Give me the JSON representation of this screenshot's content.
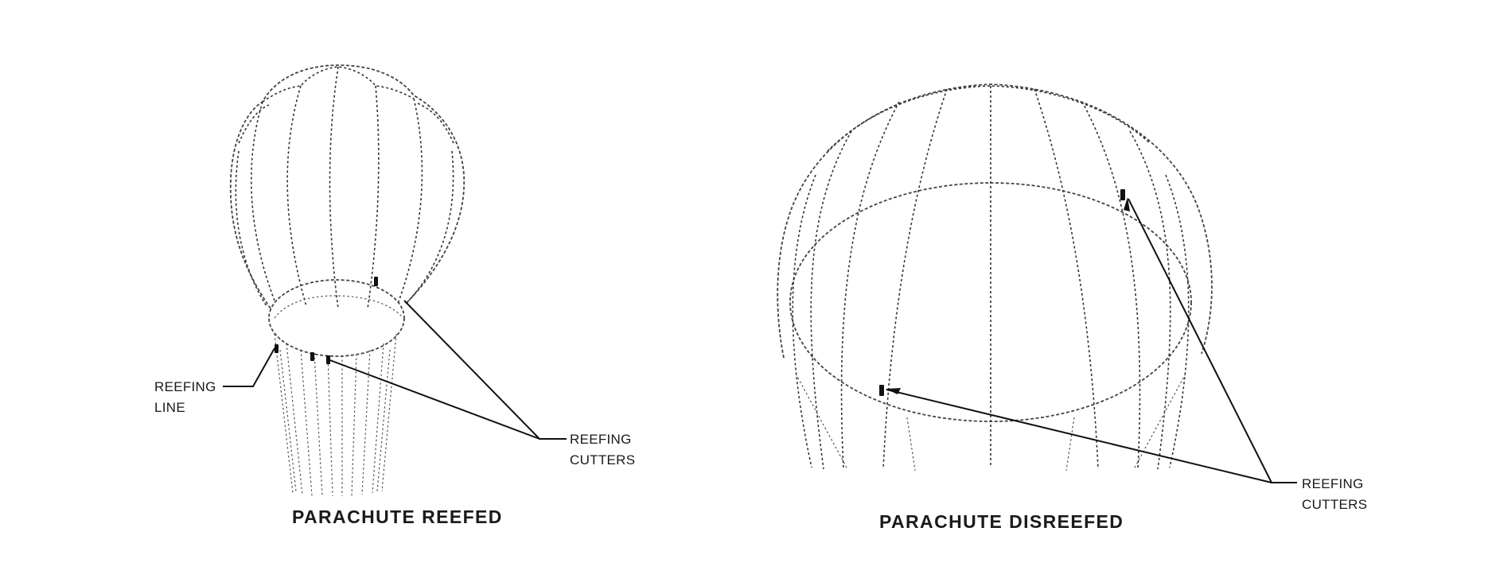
{
  "figure": {
    "left": {
      "reefing_line_label": [
        "REEFING",
        "LINE"
      ],
      "reefing_cutters_label": [
        "REEFING",
        "CUTTERS"
      ],
      "caption": "PARACHUTE REEFED"
    },
    "right": {
      "reefing_cutters_label": [
        "REEFING",
        "CUTTERS"
      ],
      "caption": "PARACHUTE DISREEFED"
    }
  }
}
